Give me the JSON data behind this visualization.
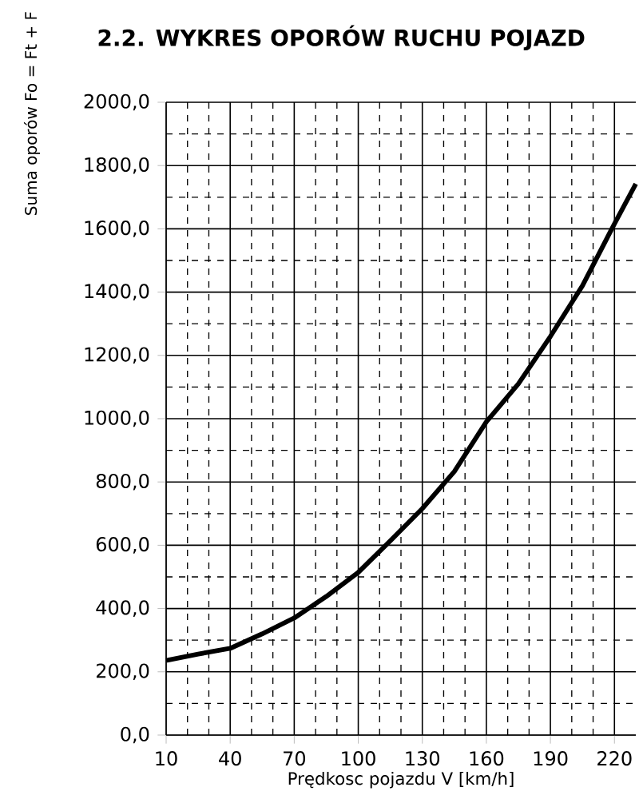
{
  "chart_data": {
    "type": "line",
    "title": "2.2. WYKRES OPORÓW RUCHU POJAZD",
    "xlabel": "Prędkosc pojazdu V [km/h]",
    "ylabel": "Suma oporów  Fo = Ft + F",
    "x": [
      10,
      25,
      40,
      55,
      70,
      85,
      100,
      115,
      130,
      145,
      160,
      175,
      190,
      205,
      220,
      230
    ],
    "series": [
      {
        "color": "#000000",
        "values": [
          236,
          256,
          274,
          320,
          370,
          438,
          514,
          614,
          716,
          833,
          990,
          1110,
          1260,
          1420,
          1616,
          1742
        ]
      }
    ],
    "xlim": [
      10,
      230
    ],
    "xticks": [
      10,
      40,
      70,
      100,
      130,
      160,
      190,
      220
    ],
    "ylim": [
      0,
      2000
    ],
    "yticks": [
      {
        "value": 0,
        "label": "0,0"
      },
      {
        "value": 200,
        "label": "200,0"
      },
      {
        "value": 400,
        "label": "400,0"
      },
      {
        "value": 600,
        "label": "600,0"
      },
      {
        "value": 800,
        "label": "800,0"
      },
      {
        "value": 1000,
        "label": "1000,0"
      },
      {
        "value": 1200,
        "label": "1200,0"
      },
      {
        "value": 1400,
        "label": "1400,0"
      },
      {
        "value": 1600,
        "label": "1600,0"
      },
      {
        "value": 1800,
        "label": "1800,0"
      },
      {
        "value": 2000,
        "label": "2000,0"
      }
    ],
    "grid": true,
    "marker": "none",
    "line_style": "solid"
  }
}
